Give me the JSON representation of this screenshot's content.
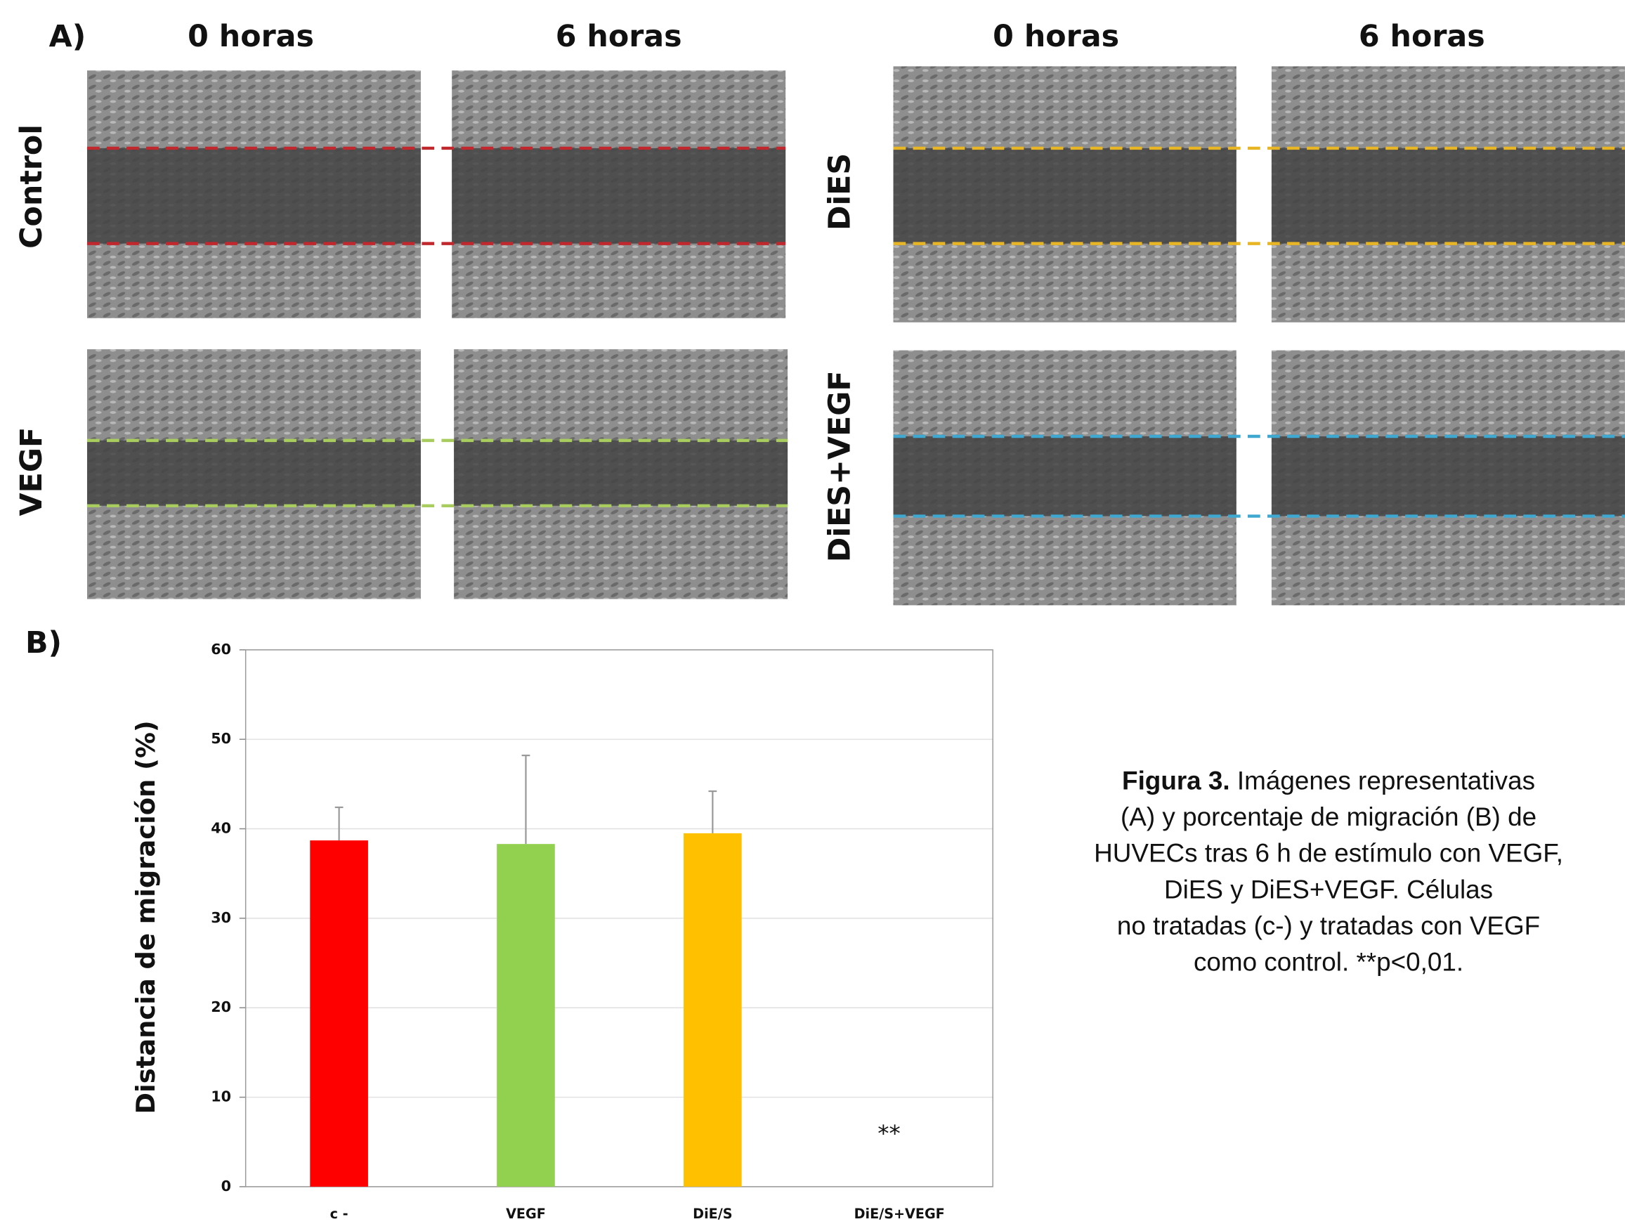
{
  "panel_a": {
    "label": "A)",
    "columns": [
      "0 horas",
      "6 horas",
      "0 horas",
      "6 horas"
    ],
    "rows": [
      "Control",
      "VEGF",
      "DiES",
      "DiES+VEGF"
    ]
  },
  "chart_data": {
    "type": "bar",
    "label": "B)",
    "ylabel": "Distancia de migración (%)",
    "categories": [
      "c -",
      "VEGF",
      "DiE/S",
      "DiE/S+VEGF"
    ],
    "values": [
      38.7,
      38.3,
      39.5,
      null
    ],
    "errors": [
      3.7,
      9.9,
      4.7,
      null
    ],
    "colors": [
      "#ff0000",
      "#92d050",
      "#ffc000",
      "#000000"
    ],
    "ylim": [
      0,
      60
    ],
    "yticks": [
      0,
      10,
      20,
      30,
      40,
      50,
      60
    ],
    "grid": true,
    "annotations": [
      {
        "text": "**"
      }
    ]
  },
  "caption": {
    "label": "Figura 3.",
    "lines": [
      "Imágenes representativas",
      "(A) y porcentaje de migración (B) de",
      "HUVECs tras 6 h de estímulo con  VEGF,",
      "DiES y DiES+VEGF. Células",
      "no tratadas (c-) y tratadas con  VEGF",
      "como control. **p<0,01."
    ]
  }
}
